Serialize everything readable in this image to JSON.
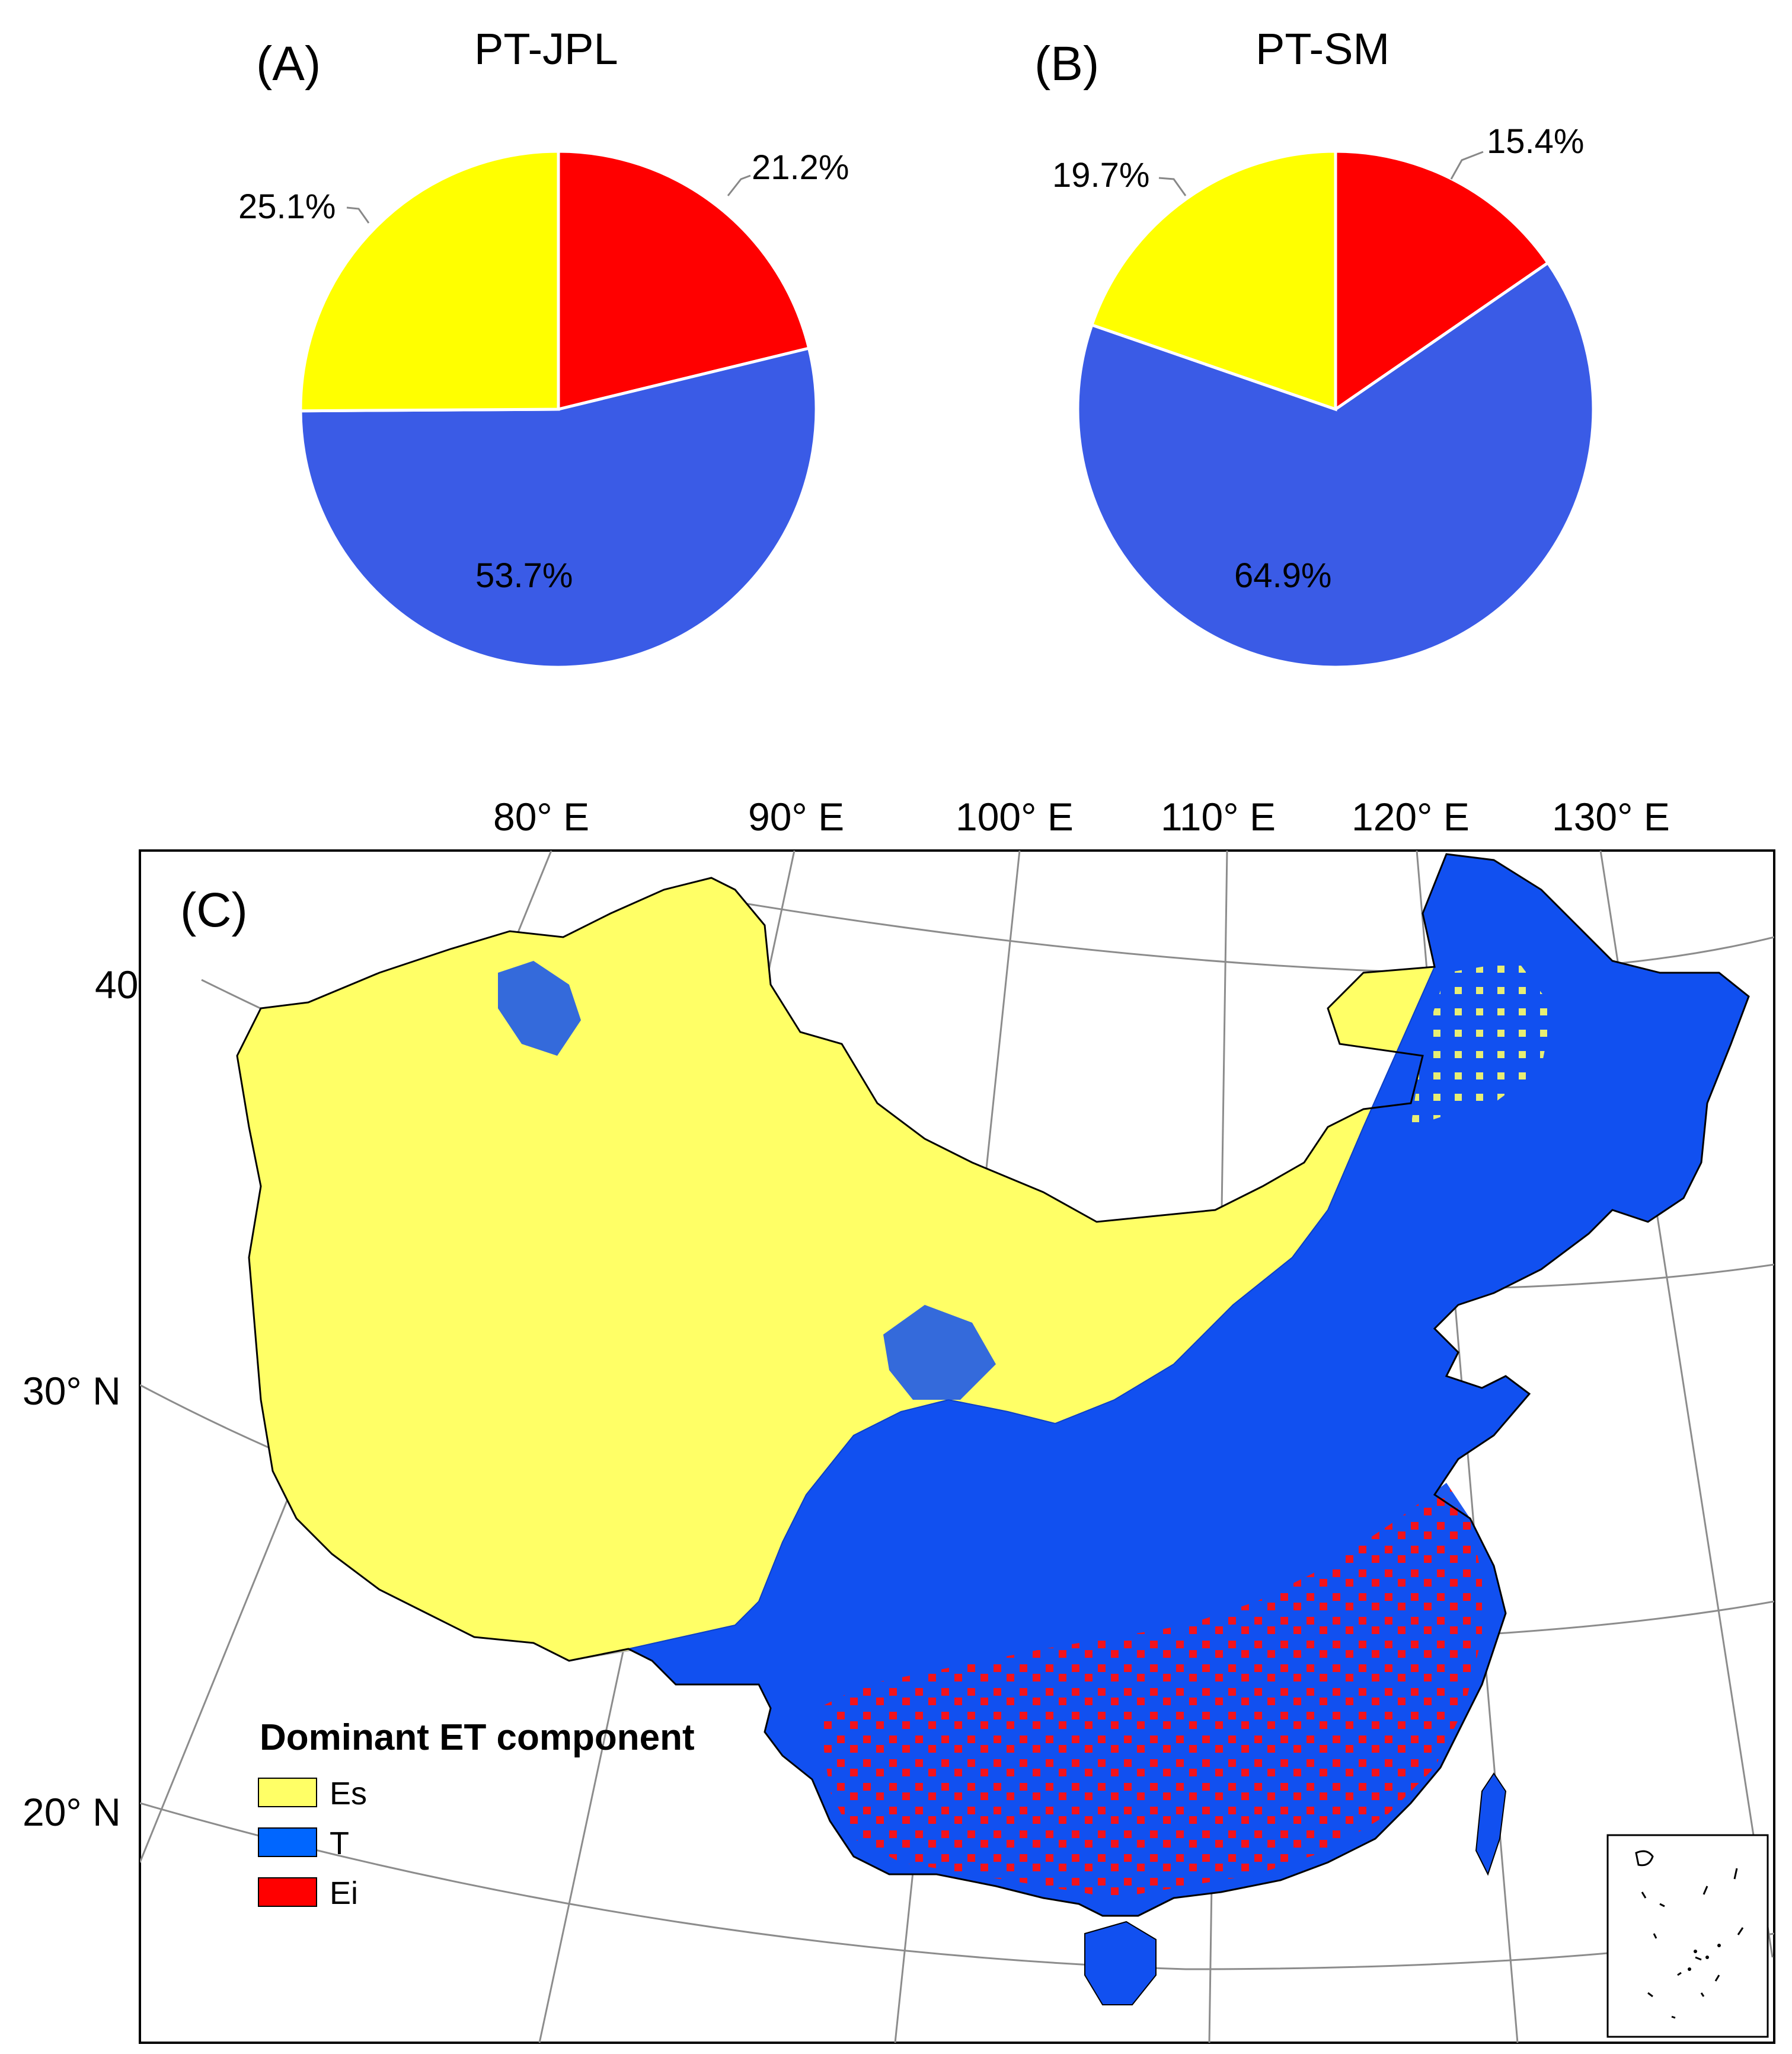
{
  "pies": [
    {
      "panel_label": "(A)",
      "title": "PT-JPL",
      "slices": [
        {
          "name": "Ei",
          "value": 21.2,
          "label": "21.2%",
          "color": "#ff0000"
        },
        {
          "name": "T",
          "value": 53.7,
          "label": "53.7%",
          "color": "#3a5be6"
        },
        {
          "name": "Es",
          "value": 25.1,
          "label": "25.1%",
          "color": "#ffff00"
        }
      ]
    },
    {
      "panel_label": "(B)",
      "title": "PT-SM",
      "slices": [
        {
          "name": "Ei",
          "value": 15.4,
          "label": "15.4%",
          "color": "#ff0000"
        },
        {
          "name": "T",
          "value": 64.9,
          "label": "64.9%",
          "color": "#3a5be6"
        },
        {
          "name": "Es",
          "value": 19.7,
          "label": "19.7%",
          "color": "#ffff00"
        }
      ]
    }
  ],
  "map": {
    "panel_label": "(C)",
    "longitude_labels": [
      "80° E",
      "90° E",
      "100° E",
      "110° E",
      "120° E",
      "130° E"
    ],
    "latitude_labels": [
      "40° N",
      "30° N",
      "20° N"
    ],
    "legend": {
      "title": "Dominant ET component",
      "items": [
        {
          "label": "Es",
          "color": "#ffff66"
        },
        {
          "label": "T",
          "color": "#0066ff"
        },
        {
          "label": "Ei",
          "color": "#ff0000"
        }
      ]
    },
    "colors": {
      "es": "#ffff66",
      "t": "#1150f0",
      "ei": "#ff1010",
      "graticule": "#8c8c8c",
      "border": "#000000"
    }
  },
  "chart_data": [
    {
      "type": "pie",
      "title": "PT-JPL",
      "categories": [
        "Ei",
        "T",
        "Es"
      ],
      "values": [
        21.2,
        53.7,
        25.1
      ],
      "labels": [
        "21.2%",
        "53.7%",
        "25.1%"
      ]
    },
    {
      "type": "pie",
      "title": "PT-SM",
      "categories": [
        "Ei",
        "T",
        "Es"
      ],
      "values": [
        15.4,
        64.9,
        19.7
      ],
      "labels": [
        "15.4%",
        "64.9%",
        "19.7%"
      ]
    }
  ]
}
